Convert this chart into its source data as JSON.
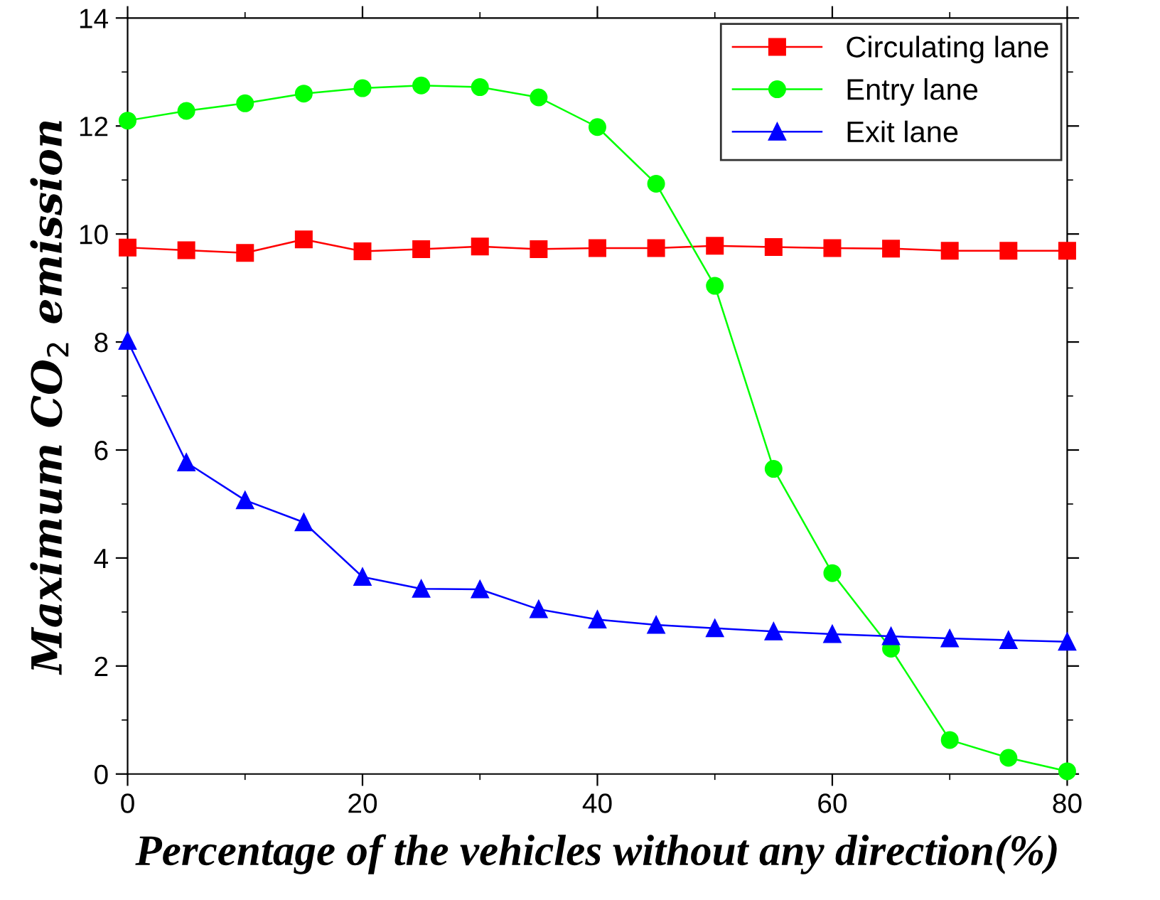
{
  "chart_data": {
    "type": "line",
    "xlabel": "Percentage of the vehicles without any direction(%)",
    "ylabel": "Maximum CO$_{2}$ emission",
    "x": [
      0,
      5,
      10,
      15,
      20,
      25,
      30,
      35,
      40,
      45,
      50,
      55,
      60,
      65,
      70,
      75,
      80
    ],
    "series": [
      {
        "name": "Circulating lane",
        "color": "#ff0000",
        "marker": "square",
        "values": [
          9.75,
          9.7,
          9.65,
          9.9,
          9.68,
          9.72,
          9.77,
          9.72,
          9.74,
          9.74,
          9.78,
          9.76,
          9.74,
          9.73,
          9.69,
          9.69,
          9.69
        ]
      },
      {
        "name": "Entry lane",
        "color": "#00ff00",
        "marker": "circle",
        "values": [
          12.1,
          12.28,
          12.42,
          12.6,
          12.7,
          12.75,
          12.72,
          12.53,
          11.98,
          10.93,
          9.04,
          5.65,
          3.72,
          2.32,
          0.63,
          0.3,
          0.05
        ]
      },
      {
        "name": "Exit lane",
        "color": "#0000ff",
        "marker": "triangle",
        "values": [
          8.02,
          5.77,
          5.07,
          4.66,
          3.65,
          3.43,
          3.42,
          3.05,
          2.86,
          2.76,
          2.7,
          2.64,
          2.59,
          2.55,
          2.51,
          2.48,
          2.45
        ]
      }
    ],
    "xlim": [
      0,
      80
    ],
    "xticks": [
      0,
      20,
      40,
      60,
      80
    ],
    "ylim": [
      0,
      14
    ],
    "yticks": [
      0,
      2,
      4,
      6,
      8,
      10,
      12,
      14
    ],
    "legend": "top right",
    "grid": false,
    "line_style": "solid"
  }
}
